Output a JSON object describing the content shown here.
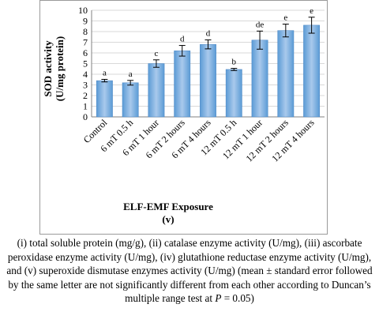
{
  "chart_data": {
    "type": "bar",
    "categories": [
      "Control",
      "6 mT 0.5 h",
      "6 mT 1 hour",
      "6 mT 2 hours",
      "6 mT 4 hours",
      "12 mT 0.5 h",
      "12 mT 1 hour",
      "12 mT 2 hours",
      "12 mT 4 hours"
    ],
    "values": [
      3.4,
      3.2,
      5.0,
      6.2,
      6.8,
      4.45,
      7.2,
      8.1,
      8.6
    ],
    "errors": [
      0.12,
      0.22,
      0.35,
      0.5,
      0.42,
      0.1,
      0.85,
      0.6,
      0.75
    ],
    "letters": [
      "a",
      "a",
      "c",
      "d",
      "d",
      "b",
      "de",
      "e",
      "e"
    ],
    "ylabel_line1": "SOD activity",
    "ylabel_line2": "(U/mg protein)",
    "xlabel_line1": "ELF-EMF Exposure",
    "xlabel_line2": "(v)",
    "ylim": [
      0,
      10
    ],
    "yticks": [
      "0",
      "1",
      "2",
      "3",
      "4",
      "5",
      "6",
      "7",
      "8",
      "9",
      "10"
    ],
    "grid": true,
    "bar_color": "#5b9bd5",
    "bar_color_light": "#a9c9ec"
  },
  "caption": {
    "text_before": "(i) total soluble protein (mg/g), (ii) catalase enzyme activity (U/mg), (iii) ascorbate peroxidase enzyme activity (U/mg), (iv) glutathione reductase enzyme activity (U/mg), and (v) superoxide dismutase enzymes activity (U/mg) (mean ± standard error followed by the same letter are not significantly different from each other according to Duncan’s multiple range test at ",
    "p_symbol": "P",
    "text_after": " = 0.05)"
  }
}
